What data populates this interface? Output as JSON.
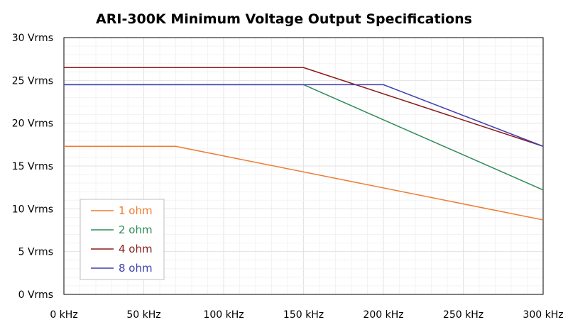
{
  "chart_data": {
    "type": "line",
    "title": "ARI-300K Minimum Voltage Output Specifications",
    "xlabel": "",
    "ylabel": "",
    "xlim": [
      0,
      300
    ],
    "ylim": [
      0,
      30
    ],
    "x_ticks": [
      0,
      50,
      100,
      150,
      200,
      250,
      300
    ],
    "x_tick_labels": [
      "0 kHz",
      "50 kHz",
      "100 kHz",
      "150 kHz",
      "200 kHz",
      "250 kHz",
      "300 kHz"
    ],
    "y_ticks": [
      0,
      5,
      10,
      15,
      20,
      25,
      30
    ],
    "y_tick_labels": [
      "0 Vrms",
      "5 Vrms",
      "10 Vrms",
      "15 Vrms",
      "20 Vrms",
      "25 Vrms",
      "30 Vrms"
    ],
    "grid": true,
    "legend_position": "bottom-left",
    "series": [
      {
        "name": "1 ohm",
        "color": "#ED7D31",
        "x": [
          0,
          70,
          300
        ],
        "y": [
          17.3,
          17.3,
          8.7
        ]
      },
      {
        "name": "2 ohm",
        "color": "#2E8B57",
        "x": [
          0,
          150,
          300
        ],
        "y": [
          24.5,
          24.5,
          12.2
        ]
      },
      {
        "name": "4 ohm",
        "color": "#8B1A1A",
        "x": [
          0,
          150,
          300
        ],
        "y": [
          26.5,
          26.5,
          17.3
        ]
      },
      {
        "name": "8 ohm",
        "color": "#3F3FAF",
        "x": [
          0,
          200,
          300
        ],
        "y": [
          24.5,
          24.5,
          17.3
        ]
      }
    ]
  }
}
